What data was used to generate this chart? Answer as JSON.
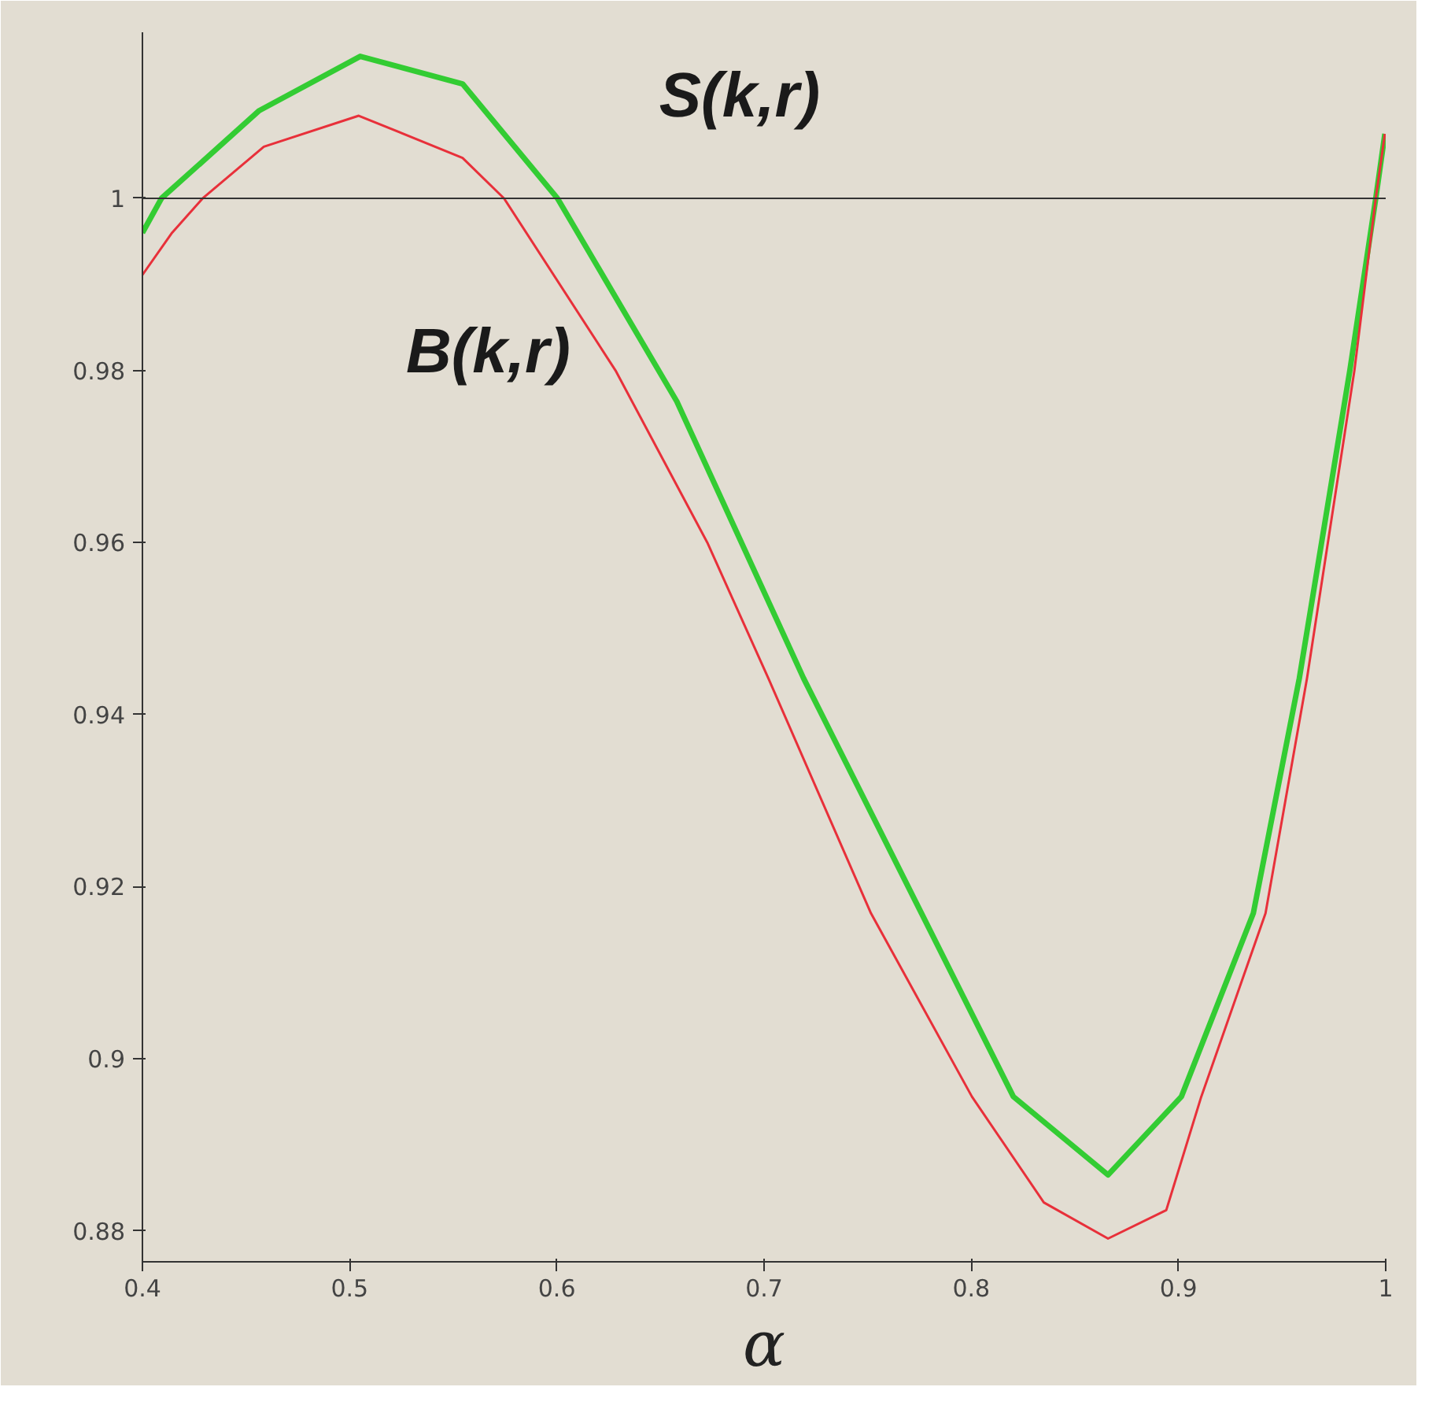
{
  "chart_data": {
    "type": "line",
    "xlabel": "α",
    "xlim": [
      0.4,
      1.0
    ],
    "ylim": [
      0.8764,
      1.0193
    ],
    "xticks": [
      0.4,
      0.5,
      0.6,
      0.7,
      0.8,
      0.9,
      {
        "value": 1.0,
        "label": "1"
      }
    ],
    "yticks": [
      0.88,
      0.9,
      0.92,
      0.94,
      0.96,
      0.98,
      {
        "value": 1.0,
        "label": "1"
      }
    ],
    "grid": false,
    "line_style": "solid",
    "ref_lines": [
      {
        "axis": "y",
        "value": 1.0,
        "color": "#333333"
      }
    ],
    "series": [
      {
        "name": "S(k,r)",
        "color": "#33cc33",
        "x": [
          0.4,
          0.4092,
          0.4564,
          0.5051,
          0.5545,
          0.6003,
          0.6579,
          0.7191,
          0.776,
          0.8203,
          0.866,
          0.9014,
          0.9361,
          0.9583,
          0.9827,
          0.9952,
          0.9996
        ],
        "values": [
          0.996,
          1.0,
          1.0102,
          1.0165,
          1.0133,
          1.0,
          0.9764,
          0.9442,
          0.9169,
          0.8956,
          0.8865,
          0.8956,
          0.9169,
          0.9442,
          0.98,
          1.0,
          1.0075
        ]
      },
      {
        "name": "B(k,r)",
        "color": "#e8303a",
        "x": [
          0.4,
          0.4143,
          0.4291,
          0.4586,
          0.5044,
          0.5545,
          0.5745,
          0.6283,
          0.6726,
          0.7021,
          0.7516,
          0.8003,
          0.835,
          0.866,
          0.8941,
          0.911,
          0.942,
          0.962,
          0.9849,
          0.9952,
          0.9996
        ],
        "values": [
          0.9911,
          0.996,
          1.0,
          1.006,
          1.0096,
          1.0047,
          1.0,
          0.98,
          0.96,
          0.9442,
          0.9169,
          0.8956,
          0.8833,
          0.8791,
          0.8824,
          0.8956,
          0.9169,
          0.9442,
          0.98,
          1.0,
          1.0075
        ]
      }
    ]
  }
}
